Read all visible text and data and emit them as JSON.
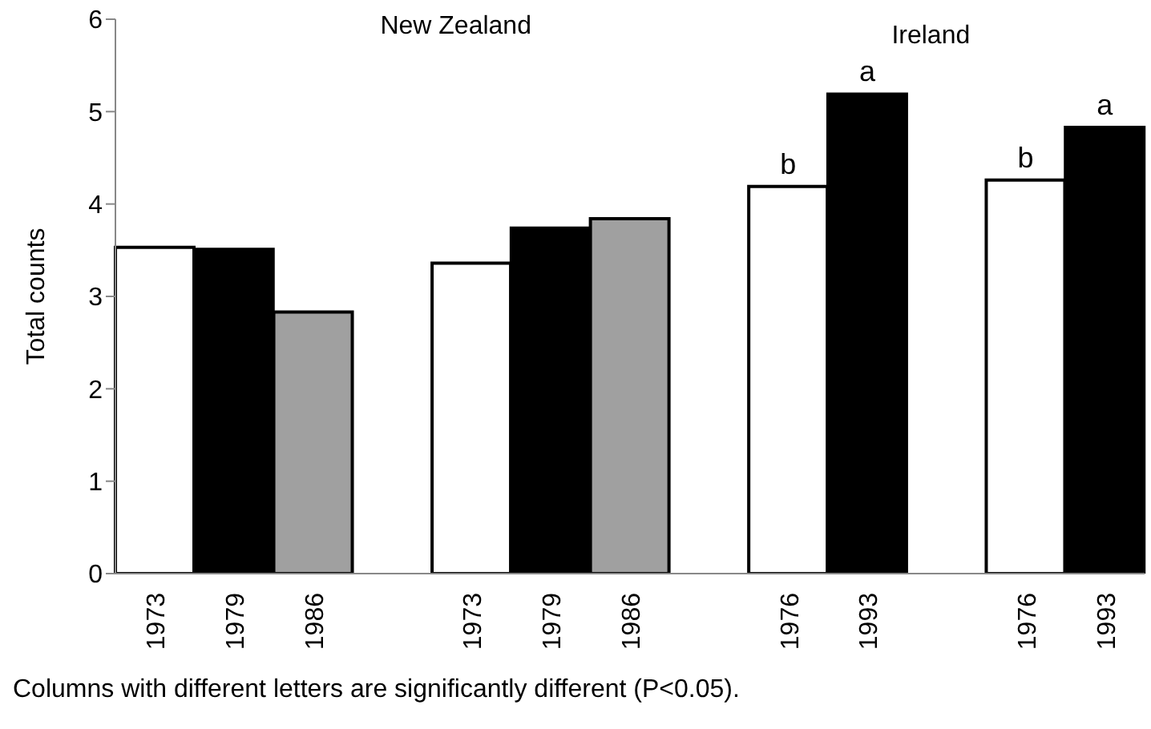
{
  "chart_data": {
    "type": "bar",
    "ylabel": "Total counts",
    "categories": [
      "1973",
      "1979",
      "1986",
      null,
      "1973",
      "1979",
      "1986",
      null,
      "1976",
      "1993",
      null,
      "1976",
      "1993"
    ],
    "values": [
      3.53,
      3.51,
      2.83,
      null,
      3.36,
      3.74,
      3.84,
      null,
      4.19,
      5.19,
      null,
      4.26,
      4.83
    ],
    "colors": [
      "#ffffff",
      "#000000",
      "#a0a0a0",
      null,
      "#ffffff",
      "#000000",
      "#a0a0a0",
      null,
      "#ffffff",
      "#000000",
      null,
      "#ffffff",
      "#000000"
    ],
    "value_labels": [
      null,
      null,
      null,
      null,
      null,
      null,
      null,
      null,
      "b",
      "a",
      null,
      "b",
      "a"
    ],
    "ylim": [
      0,
      6
    ],
    "yticks": [
      0,
      1,
      2,
      3,
      4,
      5,
      6
    ],
    "grid": false,
    "legend": false,
    "annotations": [
      "New Zealand",
      "Ireland",
      "Columns with different letters are significantly different (P<0.05)."
    ]
  }
}
